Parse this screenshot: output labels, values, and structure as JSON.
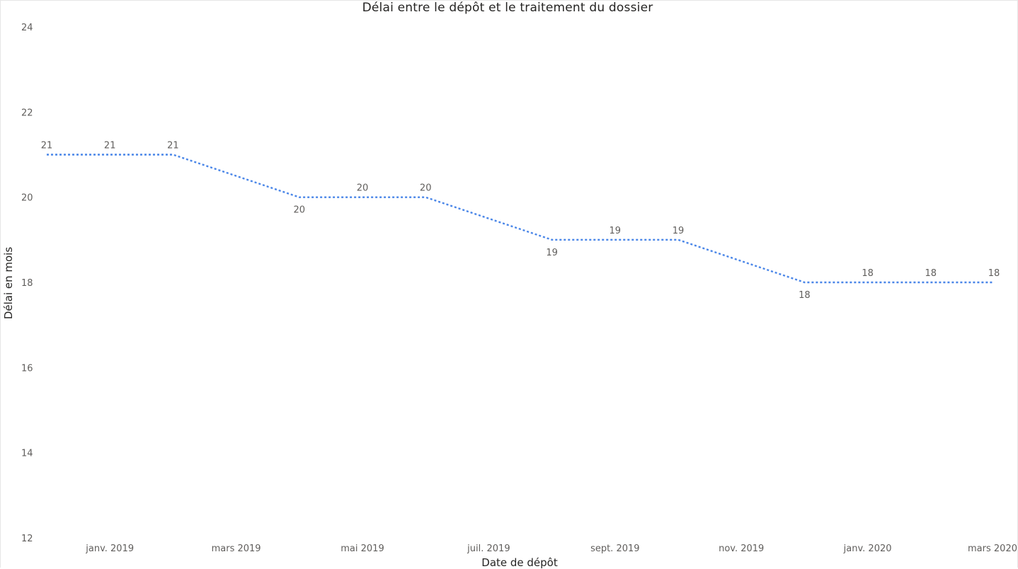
{
  "chart_data": {
    "type": "line",
    "title": "Délai entre le dépôt et le traitement du dossier",
    "xlabel": "Date de dépôt",
    "ylabel": "Délai en mois",
    "ylim": [
      12,
      24
    ],
    "yticks": [
      12,
      14,
      16,
      18,
      20,
      22,
      24
    ],
    "xticks": [
      "janv. 2019",
      "mars 2019",
      "mai 2019",
      "juil. 2019",
      "sept. 2019",
      "nov. 2019",
      "janv. 2020",
      "mars 2020"
    ],
    "x": [
      "déc. 2018",
      "janv. 2019",
      "févr. 2019",
      "mars 2019",
      "avr. 2019",
      "mai 2019",
      "juin 2019",
      "juil. 2019",
      "août 2019",
      "sept. 2019",
      "oct. 2019",
      "nov. 2019",
      "déc. 2019",
      "janv. 2020",
      "févr. 2020",
      "mars 2020"
    ],
    "series": [
      {
        "name": "",
        "values": [
          21,
          21,
          21,
          null,
          20,
          20,
          20,
          null,
          19,
          19,
          19,
          null,
          18,
          18,
          18,
          18
        ],
        "color": "#4a86e8",
        "line_style": "dotted",
        "data_labels": [
          21,
          21,
          21,
          null,
          20,
          20,
          20,
          null,
          19,
          19,
          19,
          null,
          18,
          18,
          18,
          18
        ]
      }
    ],
    "grid": false,
    "legend": "none"
  }
}
